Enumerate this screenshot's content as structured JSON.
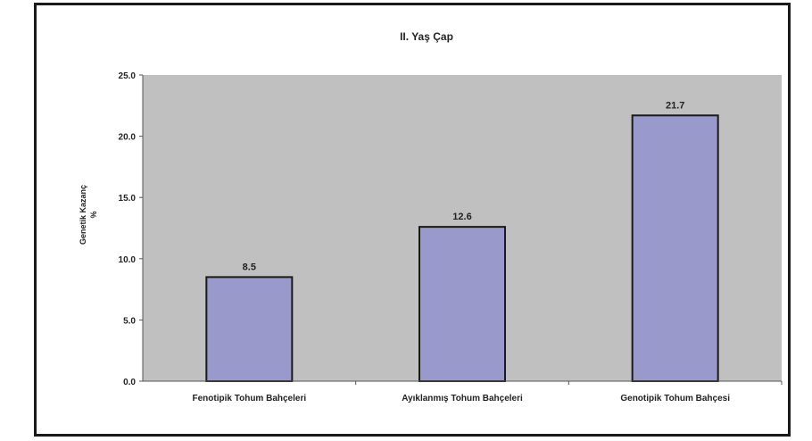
{
  "chart_data": {
    "type": "bar",
    "title": "II. Yaş Çap",
    "ylabel": "Genetik Kazanç %",
    "ylabel_lines": [
      "Genetik Kazanç",
      "%"
    ],
    "xlabel": "",
    "categories": [
      "Fenotipik Tohum Bahçeleri",
      "Ayıklanmış Tohum Bahçeleri",
      "Genotipik Tohum Bahçesi"
    ],
    "values": [
      8.5,
      12.6,
      21.7
    ],
    "data_labels": [
      "8.5",
      "12.6",
      "21.7"
    ],
    "ylim": [
      0,
      25
    ],
    "yticks": [
      0,
      5,
      10,
      15,
      20,
      25
    ],
    "ytick_labels": [
      "0.0",
      "5.0",
      "10.0",
      "15.0",
      "20.0",
      "25.0"
    ],
    "grid": false,
    "legend": "none",
    "colors": {
      "plot_background": "#c0c0c0",
      "bar_fill": "#9999cc",
      "bar_stroke": "#1a1a1a",
      "text": "#222222"
    }
  }
}
